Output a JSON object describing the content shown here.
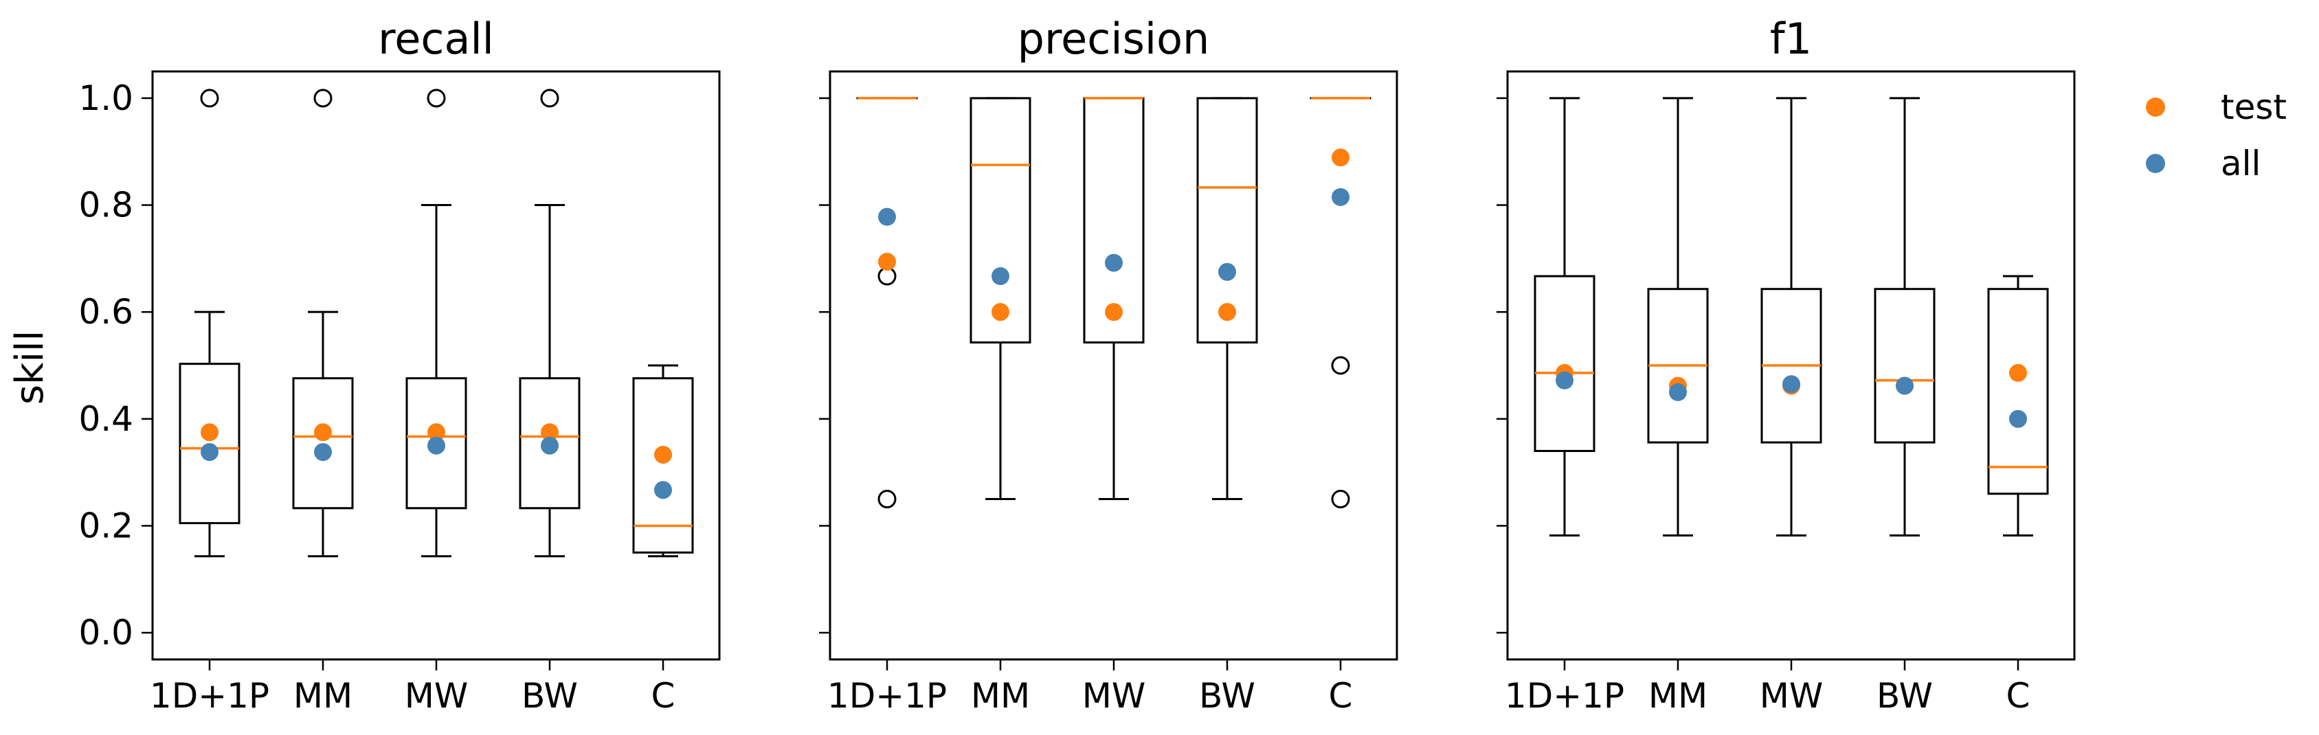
{
  "chart_data": {
    "type": "box",
    "categories": [
      "1D+1P",
      "MM",
      "MW",
      "BW",
      "C"
    ],
    "ylabel": "skill",
    "ylim": [
      -0.05,
      1.05
    ],
    "yticks": [
      "0.0",
      "0.2",
      "0.4",
      "0.6",
      "0.8",
      "1.0"
    ],
    "legend": {
      "placement": "outside-right",
      "entries": [
        {
          "label": "test",
          "color": "#ff7f0e"
        },
        {
          "label": "all",
          "color": "#4682b4"
        }
      ]
    },
    "colors": {
      "box": "#000000",
      "median": "#ff7f0e",
      "test": "#ff7f0e",
      "all": "#4682b4"
    },
    "panels": [
      {
        "title": "recall",
        "boxes": [
          {
            "q1": 0.205,
            "median": 0.345,
            "q3": 0.503,
            "whisker_low": 0.143,
            "whisker_high": 0.6,
            "fliers": [
              1.0
            ],
            "test": 0.375,
            "all": 0.338
          },
          {
            "q1": 0.233,
            "median": 0.367,
            "q3": 0.476,
            "whisker_low": 0.143,
            "whisker_high": 0.6,
            "fliers": [
              1.0
            ],
            "test": 0.375,
            "all": 0.338
          },
          {
            "q1": 0.233,
            "median": 0.367,
            "q3": 0.476,
            "whisker_low": 0.143,
            "whisker_high": 0.8,
            "fliers": [
              1.0
            ],
            "test": 0.375,
            "all": 0.35
          },
          {
            "q1": 0.233,
            "median": 0.367,
            "q3": 0.476,
            "whisker_low": 0.143,
            "whisker_high": 0.8,
            "fliers": [
              1.0
            ],
            "test": 0.375,
            "all": 0.35
          },
          {
            "q1": 0.15,
            "median": 0.2,
            "q3": 0.476,
            "whisker_low": 0.143,
            "whisker_high": 0.5,
            "fliers": [],
            "test": 0.333,
            "all": 0.267
          }
        ]
      },
      {
        "title": "precision",
        "boxes": [
          {
            "q1": 1.0,
            "median": 1.0,
            "q3": 1.0,
            "whisker_low": 1.0,
            "whisker_high": 1.0,
            "fliers": [
              0.667,
              0.25
            ],
            "test": 0.694,
            "all": 0.778
          },
          {
            "q1": 0.543,
            "median": 0.875,
            "q3": 1.0,
            "whisker_low": 0.25,
            "whisker_high": 1.0,
            "fliers": [],
            "test": 0.6,
            "all": 0.667
          },
          {
            "q1": 0.543,
            "median": 1.0,
            "q3": 1.0,
            "whisker_low": 0.25,
            "whisker_high": 1.0,
            "fliers": [],
            "test": 0.6,
            "all": 0.692
          },
          {
            "q1": 0.543,
            "median": 0.833,
            "q3": 1.0,
            "whisker_low": 0.25,
            "whisker_high": 1.0,
            "fliers": [],
            "test": 0.6,
            "all": 0.675
          },
          {
            "q1": 1.0,
            "median": 1.0,
            "q3": 1.0,
            "whisker_low": 1.0,
            "whisker_high": 1.0,
            "fliers": [
              0.5,
              0.25
            ],
            "test": 0.889,
            "all": 0.815
          }
        ]
      },
      {
        "title": "f1",
        "boxes": [
          {
            "q1": 0.34,
            "median": 0.486,
            "q3": 0.667,
            "whisker_low": 0.182,
            "whisker_high": 1.0,
            "fliers": [],
            "test": 0.486,
            "all": 0.472
          },
          {
            "q1": 0.356,
            "median": 0.5,
            "q3": 0.643,
            "whisker_low": 0.182,
            "whisker_high": 1.0,
            "fliers": [],
            "test": 0.462,
            "all": 0.45
          },
          {
            "q1": 0.356,
            "median": 0.5,
            "q3": 0.643,
            "whisker_low": 0.182,
            "whisker_high": 1.0,
            "fliers": [],
            "test": 0.462,
            "all": 0.465
          },
          {
            "q1": 0.356,
            "median": 0.472,
            "q3": 0.643,
            "whisker_low": 0.182,
            "whisker_high": 1.0,
            "fliers": [],
            "test": 0.462,
            "all": 0.462
          },
          {
            "q1": 0.26,
            "median": 0.31,
            "q3": 0.643,
            "whisker_low": 0.182,
            "whisker_high": 0.667,
            "fliers": [],
            "test": 0.486,
            "all": 0.4
          }
        ]
      }
    ]
  }
}
